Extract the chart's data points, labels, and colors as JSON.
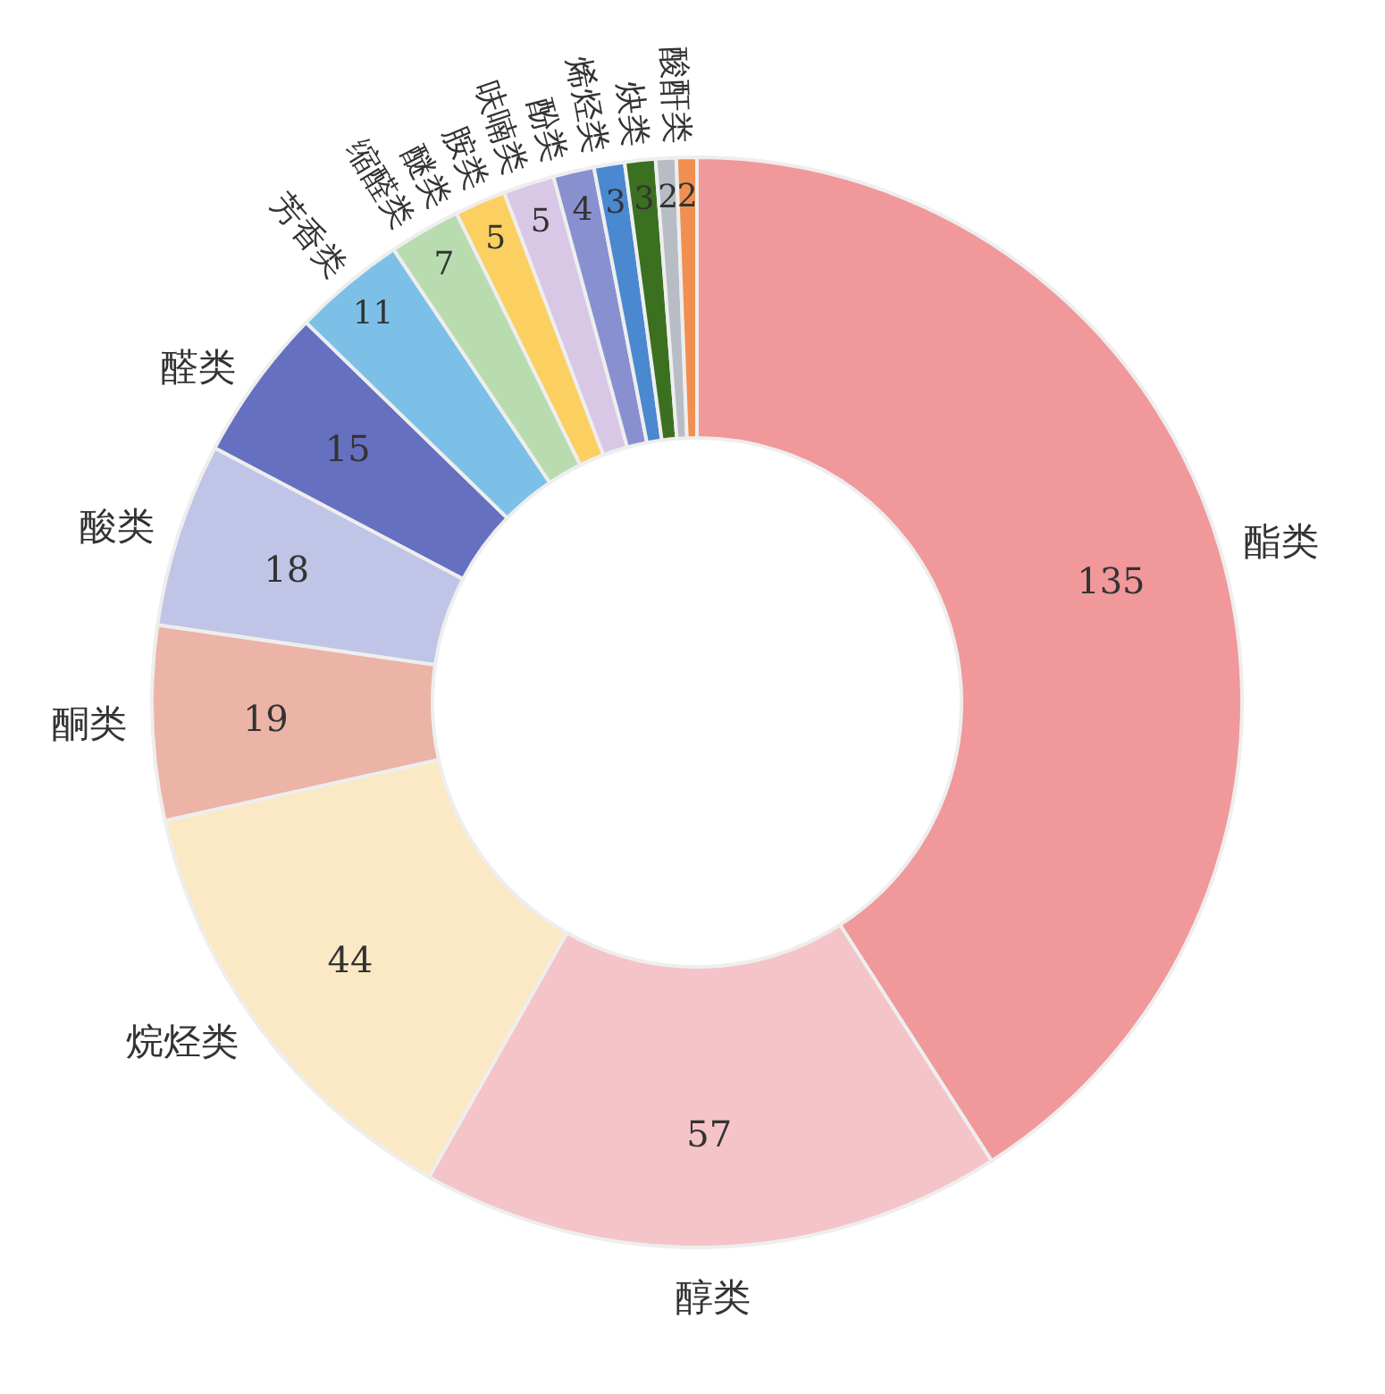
{
  "chart_data": {
    "type": "donut",
    "categories": [
      "酯类",
      "醇类",
      "烷烃类",
      "酮类",
      "酸类",
      "醛类",
      "芳香类",
      "缩醛类",
      "醚类",
      "胺类",
      "呋喃类",
      "酚类",
      "烯烃类",
      "炔类",
      "酸酐类"
    ],
    "values": [
      135,
      57,
      44,
      19,
      18,
      15,
      11,
      7,
      5,
      5,
      4,
      3,
      3,
      2,
      2
    ],
    "colors": [
      "#f0989a",
      "#f5c4c8",
      "#fbe8c4",
      "#ebb4a6",
      "#c0c4e6",
      "#6670c0",
      "#7cc0e8",
      "#b8dcb0",
      "#fbd060",
      "#d8c8e6",
      "#8890d0",
      "#4a88d0",
      "#3a7020",
      "#b8bcc4",
      "#f09050"
    ],
    "data_labels": true
  }
}
